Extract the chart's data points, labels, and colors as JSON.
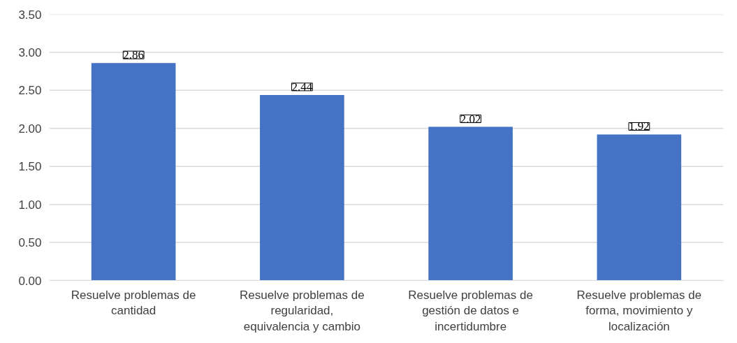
{
  "chart_data": {
    "type": "bar",
    "categories": [
      "Resuelve problemas de cantidad",
      "Resuelve problemas de regularidad, equivalencia y cambio",
      "Resuelve problemas de gestión de datos e incertidumbre",
      "Resuelve problemas de forma, movimiento y localización"
    ],
    "values": [
      2.86,
      2.44,
      2.02,
      1.92
    ],
    "color": "#4472c4",
    "ylim": [
      0,
      3.5
    ],
    "yticks": [
      "0.00",
      "0.50",
      "1.00",
      "1.50",
      "2.00",
      "2.50",
      "3.00",
      "3.50"
    ],
    "grid": "y",
    "data_labels": true
  }
}
